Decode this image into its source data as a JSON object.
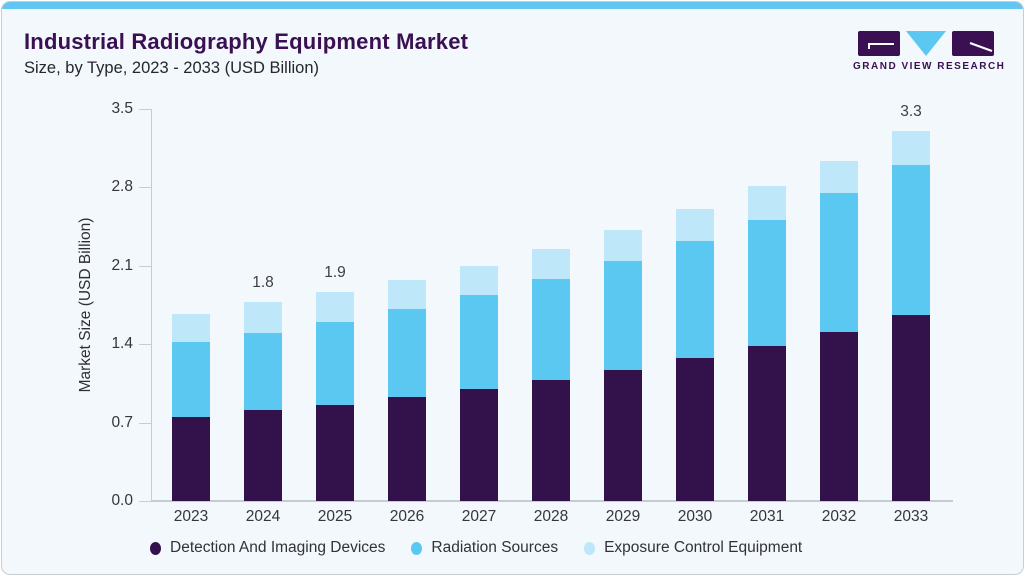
{
  "header": {
    "title": "Industrial Radiography Equipment Market",
    "subtitle": "Size, by Type, 2023 - 2033 (USD Billion)"
  },
  "logo": {
    "brand": "GRAND VIEW RESEARCH",
    "icon": "gvr-logo",
    "accent_blue": "#5bc8f1",
    "accent_purple": "#3b1053"
  },
  "chart_data": {
    "type": "bar",
    "stacked": true,
    "title": "Industrial Radiography Equipment Market Size, by Type, 2023 - 2033 (USD Billion)",
    "xlabel": "",
    "ylabel": "Market Size (USD Billion)",
    "ylim": [
      0,
      3.5
    ],
    "yticks": [
      0.0,
      0.7,
      1.4,
      2.1,
      2.8,
      3.5
    ],
    "grid": false,
    "legend_position": "bottom",
    "categories": [
      "2023",
      "2024",
      "2025",
      "2026",
      "2027",
      "2028",
      "2029",
      "2030",
      "2031",
      "2032",
      "2033"
    ],
    "series": [
      {
        "name": "Detection And Imaging Devices",
        "color": "#33124b",
        "values": [
          0.75,
          0.81,
          0.86,
          0.93,
          1.0,
          1.08,
          1.17,
          1.28,
          1.38,
          1.51,
          1.66
        ]
      },
      {
        "name": "Radiation Sources",
        "color": "#5bc8f2",
        "values": [
          0.67,
          0.69,
          0.74,
          0.78,
          0.84,
          0.9,
          0.97,
          1.04,
          1.13,
          1.24,
          1.34
        ]
      },
      {
        "name": "Exposure Control Equipment",
        "color": "#bee7f9",
        "values": [
          0.25,
          0.28,
          0.27,
          0.26,
          0.26,
          0.27,
          0.28,
          0.29,
          0.3,
          0.29,
          0.3
        ]
      }
    ],
    "totals": [
      1.67,
      1.78,
      1.87,
      1.97,
      2.1,
      2.25,
      2.42,
      2.61,
      2.81,
      3.04,
      3.3
    ],
    "bar_labels": {
      "2024": "1.8",
      "2025": "1.9",
      "2033": "3.3"
    }
  },
  "colors": {
    "card_background": "#f2f8fb",
    "top_strip": "#63c6f0",
    "title_text": "#3b1053",
    "axis": "#c6ccd1",
    "tick_text": "#35353c"
  }
}
